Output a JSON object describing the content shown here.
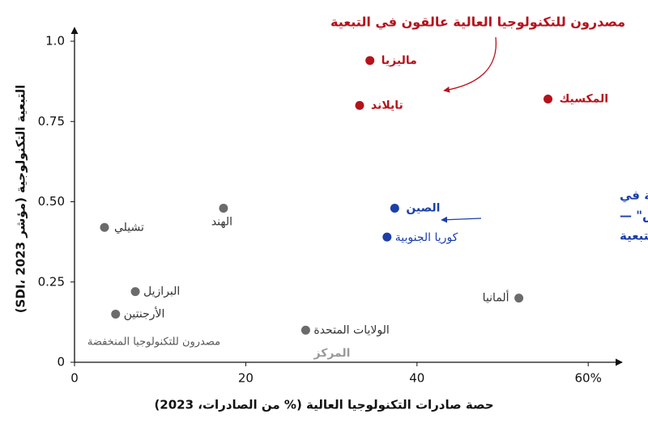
{
  "chart_data": {
    "type": "scatter",
    "x_label": "حصة صادرات التكنولوجيا العالية (% من الصادرات، 2023)",
    "y_label": "التبعية التكنولوجية (مؤشر SDI، 2023)",
    "xlim": [
      0,
      63
    ],
    "ylim": [
      0,
      1.04
    ],
    "xticks": [
      0,
      20,
      40,
      {
        "value": 60,
        "label": "60%"
      }
    ],
    "yticks": [
      0,
      0.25,
      {
        "value": 0.5,
        "label": "0.50"
      },
      0.75,
      {
        "value": 1,
        "label": "1.0"
      }
    ],
    "points": [
      {
        "label": "ماليزيا",
        "x": 34.5,
        "y": 0.94,
        "color": "#b5121b"
      },
      {
        "label": "تايلاند",
        "x": 33.3,
        "y": 0.8,
        "color": "#b5121b"
      },
      {
        "label": "المكسيك",
        "x": 55.3,
        "y": 0.82,
        "color": "#b5121b"
      },
      {
        "label": "الصين",
        "x": 37.4,
        "y": 0.48,
        "color": "#1c3fa8"
      },
      {
        "label": "كوريا الجنوبية",
        "x": 36.5,
        "y": 0.39,
        "color": "#1c3fa8"
      },
      {
        "label": "الهند",
        "x": 17.4,
        "y": 0.48,
        "color": "#6b6b6b"
      },
      {
        "label": "تشيلي",
        "x": 3.5,
        "y": 0.42,
        "color": "#6b6b6b"
      },
      {
        "label": "البرازيل",
        "x": 7.1,
        "y": 0.22,
        "color": "#6b6b6b"
      },
      {
        "label": "الأرجنتين",
        "x": 4.8,
        "y": 0.15,
        "color": "#6b6b6b"
      },
      {
        "label": "الولايات المتحدة",
        "x": 27.0,
        "y": 0.1,
        "color": "#6b6b6b"
      },
      {
        "label": "ألمانيا",
        "x": 51.9,
        "y": 0.2,
        "color": "#6b6b6b"
      }
    ],
    "annotations": [
      {
        "lines": [
          "مصدرون للتكنولوجيا العالية عالقون في التبعية"
        ],
        "color": "#b5121b"
      },
      {
        "lines": [
          "لديهم تكنولوجيا عالية في",
          "صادراتهم بقدر \"الماكيلاس\" —",
          "لكنهم كسروا قيد التبعية"
        ],
        "color": "#1c3fa8"
      },
      {
        "lines": [
          "مصدرون للتكنولوجيا المنخفضة"
        ],
        "color": "#555555"
      },
      {
        "lines": [
          "المركز"
        ],
        "color": "#9a9a9a"
      }
    ]
  }
}
